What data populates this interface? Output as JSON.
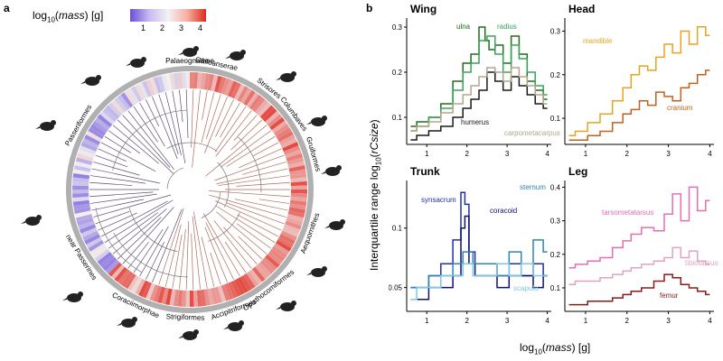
{
  "panel_a": {
    "label": "a",
    "legend": {
      "title_prefix": "log",
      "title_sub": "10",
      "title_var": "mass",
      "title_unit": "[g]",
      "ticks": [
        "1",
        "2",
        "3",
        "4"
      ]
    },
    "clades": [
      "Palaeognathae",
      "Galloanserae",
      "Strisores",
      "Columbaves",
      "Gruiformes",
      "Aequornithes",
      "Opisthocomiformes",
      "Accipitriformes",
      "Strigiformes",
      "Coraciimorphae",
      "near Passerines",
      "Passeriformes"
    ],
    "colors": {
      "low": "#6a4fd8",
      "mid": "#f2f2f2",
      "high": "#e0281e",
      "ring": "#b0b0b0"
    }
  },
  "panel_b_label": "b",
  "ylabel": {
    "prefix": "Interquartile range log",
    "sub": "10",
    "var": "rCsize",
    "close": ")",
    "open": "("
  },
  "xlabel": {
    "prefix": "log",
    "sub": "10",
    "open": "(",
    "var": "mass",
    "close": ") [g]"
  },
  "chart_data": [
    {
      "type": "line",
      "title": "Wing",
      "xlim": [
        0.5,
        4.1
      ],
      "ylim": [
        0.04,
        0.32
      ],
      "xticks": [
        1,
        2,
        3,
        4
      ],
      "yticks": [
        0.1,
        0.2,
        0.3
      ],
      "series": [
        {
          "name": "ulna",
          "color": "#1f6e1a",
          "x": [
            0.6,
            0.9,
            1.2,
            1.5,
            1.8,
            2.0,
            2.2,
            2.4,
            2.5,
            2.6,
            2.8,
            3.0,
            3.2,
            3.4,
            3.6,
            3.8,
            4.0
          ],
          "y": [
            0.08,
            0.09,
            0.1,
            0.13,
            0.18,
            0.22,
            0.24,
            0.3,
            0.27,
            0.25,
            0.26,
            0.22,
            0.28,
            0.24,
            0.18,
            0.16,
            0.14
          ]
        },
        {
          "name": "radius",
          "color": "#3aa35a",
          "x": [
            0.6,
            0.9,
            1.2,
            1.5,
            1.8,
            2.0,
            2.2,
            2.4,
            2.6,
            2.8,
            3.0,
            3.2,
            3.4,
            3.6,
            3.8,
            4.0
          ],
          "y": [
            0.07,
            0.08,
            0.1,
            0.12,
            0.16,
            0.2,
            0.22,
            0.27,
            0.28,
            0.24,
            0.2,
            0.26,
            0.23,
            0.2,
            0.17,
            0.15
          ]
        },
        {
          "name": "humerus",
          "color": "#1a1a1a",
          "x": [
            0.6,
            0.9,
            1.2,
            1.5,
            1.8,
            2.0,
            2.2,
            2.4,
            2.6,
            2.8,
            3.0,
            3.2,
            3.4,
            3.6,
            3.8,
            4.0
          ],
          "y": [
            0.05,
            0.06,
            0.07,
            0.08,
            0.1,
            0.12,
            0.14,
            0.16,
            0.2,
            0.18,
            0.16,
            0.19,
            0.17,
            0.15,
            0.13,
            0.12
          ]
        },
        {
          "name": "carpometacarpus",
          "color": "#b3a58a",
          "x": [
            0.6,
            0.9,
            1.2,
            1.5,
            1.8,
            2.0,
            2.2,
            2.4,
            2.6,
            2.8,
            3.0,
            3.2,
            3.4,
            3.6,
            3.8,
            4.0
          ],
          "y": [
            0.07,
            0.08,
            0.09,
            0.11,
            0.13,
            0.15,
            0.17,
            0.19,
            0.21,
            0.2,
            0.18,
            0.21,
            0.19,
            0.17,
            0.15,
            0.13
          ]
        }
      ]
    },
    {
      "type": "line",
      "title": "Head",
      "xlim": [
        0.5,
        4.1
      ],
      "ylim": [
        0.04,
        0.33
      ],
      "xticks": [
        1,
        2,
        3,
        4
      ],
      "yticks": [
        0.1,
        0.2,
        0.3
      ],
      "series": [
        {
          "name": "mandible",
          "color": "#e8a321",
          "x": [
            0.6,
            0.9,
            1.2,
            1.5,
            1.8,
            2.0,
            2.2,
            2.4,
            2.6,
            2.8,
            3.0,
            3.2,
            3.4,
            3.6,
            3.8,
            4.0
          ],
          "y": [
            0.06,
            0.07,
            0.09,
            0.11,
            0.14,
            0.17,
            0.2,
            0.22,
            0.21,
            0.24,
            0.27,
            0.25,
            0.3,
            0.27,
            0.31,
            0.29
          ]
        },
        {
          "name": "cranium",
          "color": "#c2611e",
          "x": [
            0.6,
            0.9,
            1.2,
            1.5,
            1.8,
            2.0,
            2.2,
            2.4,
            2.6,
            2.8,
            3.0,
            3.2,
            3.4,
            3.6,
            3.8,
            4.0
          ],
          "y": [
            0.05,
            0.05,
            0.06,
            0.07,
            0.09,
            0.11,
            0.12,
            0.14,
            0.13,
            0.16,
            0.15,
            0.14,
            0.17,
            0.18,
            0.2,
            0.21
          ]
        }
      ]
    },
    {
      "type": "line",
      "title": "Trunk",
      "xlim": [
        0.5,
        4.1
      ],
      "ylim": [
        0.03,
        0.14
      ],
      "xticks": [
        1,
        2,
        3,
        4
      ],
      "yticks": [
        0.05,
        0.1
      ],
      "series": [
        {
          "name": "synsacrum",
          "color": "#1f2fb0",
          "x": [
            0.6,
            0.9,
            1.2,
            1.5,
            1.8,
            1.9,
            2.0,
            2.1,
            2.3,
            2.6,
            2.9,
            3.2,
            3.5,
            3.8,
            4.0
          ],
          "y": [
            0.05,
            0.05,
            0.06,
            0.07,
            0.09,
            0.13,
            0.12,
            0.08,
            0.07,
            0.07,
            0.06,
            0.07,
            0.06,
            0.07,
            0.06
          ]
        },
        {
          "name": "coracoid",
          "color": "#0d1470",
          "x": [
            0.6,
            0.9,
            1.2,
            1.5,
            1.8,
            1.9,
            2.0,
            2.1,
            2.3,
            2.6,
            2.9,
            3.2,
            3.5,
            3.8,
            4.0
          ],
          "y": [
            0.04,
            0.04,
            0.05,
            0.05,
            0.06,
            0.1,
            0.11,
            0.07,
            0.06,
            0.06,
            0.05,
            0.06,
            0.06,
            0.05,
            0.06
          ]
        },
        {
          "name": "sternum",
          "color": "#2e86b0",
          "x": [
            0.6,
            0.9,
            1.2,
            1.5,
            1.8,
            2.0,
            2.3,
            2.6,
            2.9,
            3.2,
            3.5,
            3.8,
            4.0
          ],
          "y": [
            0.05,
            0.05,
            0.06,
            0.06,
            0.07,
            0.08,
            0.07,
            0.07,
            0.06,
            0.08,
            0.07,
            0.09,
            0.08
          ]
        },
        {
          "name": "scapula",
          "color": "#7ec8e3",
          "x": [
            0.6,
            0.9,
            1.2,
            1.5,
            1.8,
            2.0,
            2.3,
            2.6,
            2.9,
            3.2,
            3.5,
            3.8,
            4.0
          ],
          "y": [
            0.04,
            0.05,
            0.05,
            0.06,
            0.06,
            0.07,
            0.06,
            0.06,
            0.07,
            0.06,
            0.07,
            0.06,
            0.06
          ]
        }
      ]
    },
    {
      "type": "line",
      "title": "Leg",
      "xlim": [
        0.5,
        4.1
      ],
      "ylim": [
        0.03,
        0.42
      ],
      "xticks": [
        1,
        2,
        3,
        4
      ],
      "yticks": [
        0.1,
        0.2,
        0.3,
        0.4
      ],
      "series": [
        {
          "name": "tarsometatarsus",
          "color": "#e36fb0",
          "x": [
            0.6,
            0.9,
            1.2,
            1.5,
            1.8,
            2.0,
            2.2,
            2.5,
            2.8,
            3.0,
            3.2,
            3.4,
            3.6,
            3.8,
            4.0
          ],
          "y": [
            0.16,
            0.17,
            0.18,
            0.19,
            0.22,
            0.24,
            0.26,
            0.28,
            0.27,
            0.32,
            0.38,
            0.3,
            0.4,
            0.33,
            0.36
          ]
        },
        {
          "name": "tibiotarsus",
          "color": "#e0a3c0",
          "x": [
            0.6,
            0.9,
            1.2,
            1.5,
            1.8,
            2.0,
            2.2,
            2.5,
            2.8,
            3.0,
            3.2,
            3.4,
            3.6,
            3.8,
            4.0
          ],
          "y": [
            0.11,
            0.12,
            0.12,
            0.13,
            0.14,
            0.15,
            0.16,
            0.17,
            0.18,
            0.19,
            0.22,
            0.19,
            0.21,
            0.18,
            0.17
          ]
        },
        {
          "name": "femur",
          "color": "#8b1a1a",
          "x": [
            0.6,
            0.9,
            1.2,
            1.5,
            1.8,
            2.0,
            2.2,
            2.5,
            2.8,
            3.0,
            3.2,
            3.4,
            3.6,
            3.8,
            4.0
          ],
          "y": [
            0.05,
            0.05,
            0.06,
            0.06,
            0.07,
            0.08,
            0.09,
            0.1,
            0.12,
            0.14,
            0.13,
            0.11,
            0.1,
            0.09,
            0.08
          ]
        }
      ]
    }
  ]
}
